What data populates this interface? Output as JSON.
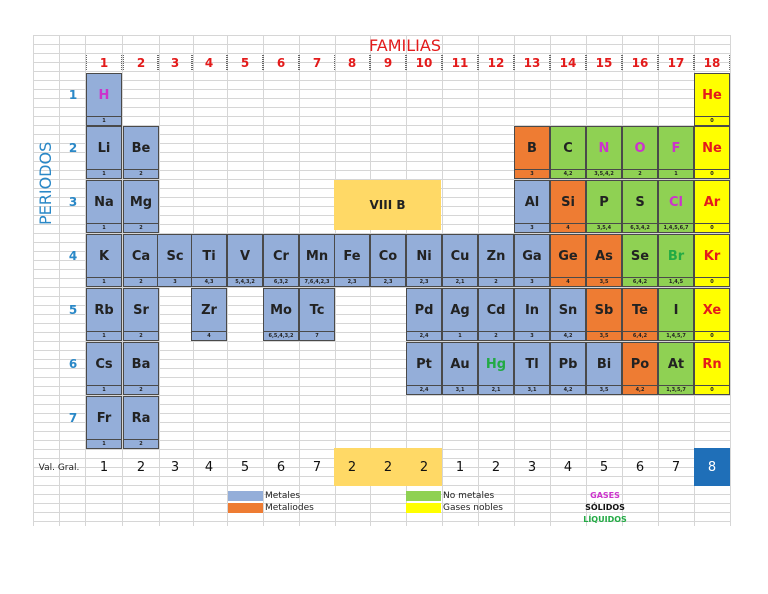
{
  "title": "FAMILIAS",
  "periods_label": "PERIODOS",
  "val_gral_label": "Val. Gral.",
  "block_label": "VIII  B",
  "families": [
    "1",
    "2",
    "3",
    "4",
    "5",
    "6",
    "7",
    "8",
    "9",
    "10",
    "11",
    "12",
    "13",
    "14",
    "15",
    "16",
    "17",
    "18"
  ],
  "periods": [
    "1",
    "2",
    "3",
    "4",
    "5",
    "6",
    "7"
  ],
  "val_gral": [
    "1",
    "2",
    "3",
    "4",
    "5",
    "6",
    "7",
    "2",
    "2",
    "2",
    "1",
    "2",
    "3",
    "4",
    "5",
    "6",
    "7",
    "8"
  ],
  "colors": {
    "metal": "#94aed9",
    "metalloid": "#ee7c33",
    "nonmetal": "#8fd153",
    "noble": "#ffff00",
    "block": "#ffd966",
    "title": "#e31b1b",
    "period": "#2a88c7",
    "gas": "#cc33cc",
    "liquid": "#22aa44",
    "group18_val": "#1f6fb8"
  },
  "elements": [
    {
      "sym": "H",
      "p": 1,
      "g": 1,
      "cat": "metal",
      "st": "gas",
      "val": "1"
    },
    {
      "sym": "He",
      "p": 1,
      "g": 18,
      "cat": "noble",
      "st": "gas",
      "val": "0"
    },
    {
      "sym": "Li",
      "p": 2,
      "g": 1,
      "cat": "metal",
      "st": "solid",
      "val": "1"
    },
    {
      "sym": "Be",
      "p": 2,
      "g": 2,
      "cat": "metal",
      "st": "solid",
      "val": "2"
    },
    {
      "sym": "B",
      "p": 2,
      "g": 13,
      "cat": "metalloid",
      "st": "solid",
      "val": "3"
    },
    {
      "sym": "C",
      "p": 2,
      "g": 14,
      "cat": "nonmetal",
      "st": "solid",
      "val": "4,2"
    },
    {
      "sym": "N",
      "p": 2,
      "g": 15,
      "cat": "nonmetal",
      "st": "gas",
      "val": "3,5,4,2"
    },
    {
      "sym": "O",
      "p": 2,
      "g": 16,
      "cat": "nonmetal",
      "st": "gas",
      "val": "2"
    },
    {
      "sym": "F",
      "p": 2,
      "g": 17,
      "cat": "nonmetal",
      "st": "gas",
      "val": "1"
    },
    {
      "sym": "Ne",
      "p": 2,
      "g": 18,
      "cat": "noble",
      "st": "gas",
      "val": "0"
    },
    {
      "sym": "Na",
      "p": 3,
      "g": 1,
      "cat": "metal",
      "st": "solid",
      "val": "1"
    },
    {
      "sym": "Mg",
      "p": 3,
      "g": 2,
      "cat": "metal",
      "st": "solid",
      "val": "2"
    },
    {
      "sym": "Al",
      "p": 3,
      "g": 13,
      "cat": "metal",
      "st": "solid",
      "val": "3"
    },
    {
      "sym": "Si",
      "p": 3,
      "g": 14,
      "cat": "metalloid",
      "st": "solid",
      "val": "4"
    },
    {
      "sym": "P",
      "p": 3,
      "g": 15,
      "cat": "nonmetal",
      "st": "solid",
      "val": "3,5,4"
    },
    {
      "sym": "S",
      "p": 3,
      "g": 16,
      "cat": "nonmetal",
      "st": "solid",
      "val": "6,3,4,2"
    },
    {
      "sym": "Cl",
      "p": 3,
      "g": 17,
      "cat": "nonmetal",
      "st": "gas",
      "val": "1,4,5,6,7"
    },
    {
      "sym": "Ar",
      "p": 3,
      "g": 18,
      "cat": "noble",
      "st": "gas",
      "val": "0"
    },
    {
      "sym": "K",
      "p": 4,
      "g": 1,
      "cat": "metal",
      "st": "solid",
      "val": "1"
    },
    {
      "sym": "Ca",
      "p": 4,
      "g": 2,
      "cat": "metal",
      "st": "solid",
      "val": "2"
    },
    {
      "sym": "Sc",
      "p": 4,
      "g": 3,
      "cat": "metal",
      "st": "solid",
      "val": "3"
    },
    {
      "sym": "Ti",
      "p": 4,
      "g": 4,
      "cat": "metal",
      "st": "solid",
      "val": "4,3"
    },
    {
      "sym": "V",
      "p": 4,
      "g": 5,
      "cat": "metal",
      "st": "solid",
      "val": "5,4,3,2"
    },
    {
      "sym": "Cr",
      "p": 4,
      "g": 6,
      "cat": "metal",
      "st": "solid",
      "val": "6,3,2"
    },
    {
      "sym": "Mn",
      "p": 4,
      "g": 7,
      "cat": "metal",
      "st": "solid",
      "val": "7,6,4,2,3"
    },
    {
      "sym": "Fe",
      "p": 4,
      "g": 8,
      "cat": "metal",
      "st": "solid",
      "val": "2,3"
    },
    {
      "sym": "Co",
      "p": 4,
      "g": 9,
      "cat": "metal",
      "st": "solid",
      "val": "2,3"
    },
    {
      "sym": "Ni",
      "p": 4,
      "g": 10,
      "cat": "metal",
      "st": "solid",
      "val": "2,3"
    },
    {
      "sym": "Cu",
      "p": 4,
      "g": 11,
      "cat": "metal",
      "st": "solid",
      "val": "2,1"
    },
    {
      "sym": "Zn",
      "p": 4,
      "g": 12,
      "cat": "metal",
      "st": "solid",
      "val": "2"
    },
    {
      "sym": "Ga",
      "p": 4,
      "g": 13,
      "cat": "metal",
      "st": "solid",
      "val": "3"
    },
    {
      "sym": "Ge",
      "p": 4,
      "g": 14,
      "cat": "metalloid",
      "st": "solid",
      "val": "4"
    },
    {
      "sym": "As",
      "p": 4,
      "g": 15,
      "cat": "metalloid",
      "st": "solid",
      "val": "3,5"
    },
    {
      "sym": "Se",
      "p": 4,
      "g": 16,
      "cat": "nonmetal",
      "st": "solid",
      "val": "6,4,2"
    },
    {
      "sym": "Br",
      "p": 4,
      "g": 17,
      "cat": "nonmetal",
      "st": "liquid",
      "val": "1,4,5"
    },
    {
      "sym": "Kr",
      "p": 4,
      "g": 18,
      "cat": "noble",
      "st": "gas",
      "val": "0"
    },
    {
      "sym": "Rb",
      "p": 5,
      "g": 1,
      "cat": "metal",
      "st": "solid",
      "val": "1"
    },
    {
      "sym": "Sr",
      "p": 5,
      "g": 2,
      "cat": "metal",
      "st": "solid",
      "val": "2"
    },
    {
      "sym": "Zr",
      "p": 5,
      "g": 4,
      "cat": "metal",
      "st": "solid",
      "val": "4"
    },
    {
      "sym": "Mo",
      "p": 5,
      "g": 6,
      "cat": "metal",
      "st": "solid",
      "val": "6,5,4,3,2"
    },
    {
      "sym": "Tc",
      "p": 5,
      "g": 7,
      "cat": "metal",
      "st": "solid",
      "val": "7"
    },
    {
      "sym": "Pd",
      "p": 5,
      "g": 10,
      "cat": "metal",
      "st": "solid",
      "val": "2,4"
    },
    {
      "sym": "Ag",
      "p": 5,
      "g": 11,
      "cat": "metal",
      "st": "solid",
      "val": "1"
    },
    {
      "sym": "Cd",
      "p": 5,
      "g": 12,
      "cat": "metal",
      "st": "solid",
      "val": "2"
    },
    {
      "sym": "In",
      "p": 5,
      "g": 13,
      "cat": "metal",
      "st": "solid",
      "val": "3"
    },
    {
      "sym": "Sn",
      "p": 5,
      "g": 14,
      "cat": "metal",
      "st": "solid",
      "val": "4,2"
    },
    {
      "sym": "Sb",
      "p": 5,
      "g": 15,
      "cat": "metalloid",
      "st": "solid",
      "val": "3,5"
    },
    {
      "sym": "Te",
      "p": 5,
      "g": 16,
      "cat": "metalloid",
      "st": "solid",
      "val": "6,4,2"
    },
    {
      "sym": "I",
      "p": 5,
      "g": 17,
      "cat": "nonmetal",
      "st": "solid",
      "val": "1,4,5,7"
    },
    {
      "sym": "Xe",
      "p": 5,
      "g": 18,
      "cat": "noble",
      "st": "gas",
      "val": "0"
    },
    {
      "sym": "Cs",
      "p": 6,
      "g": 1,
      "cat": "metal",
      "st": "solid",
      "val": "1"
    },
    {
      "sym": "Ba",
      "p": 6,
      "g": 2,
      "cat": "metal",
      "st": "solid",
      "val": "2"
    },
    {
      "sym": "Pt",
      "p": 6,
      "g": 10,
      "cat": "metal",
      "st": "solid",
      "val": "2,4"
    },
    {
      "sym": "Au",
      "p": 6,
      "g": 11,
      "cat": "metal",
      "st": "solid",
      "val": "3,1"
    },
    {
      "sym": "Hg",
      "p": 6,
      "g": 12,
      "cat": "metal",
      "st": "liquid",
      "val": "2,1"
    },
    {
      "sym": "Tl",
      "p": 6,
      "g": 13,
      "cat": "metal",
      "st": "solid",
      "val": "3,1"
    },
    {
      "sym": "Pb",
      "p": 6,
      "g": 14,
      "cat": "metal",
      "st": "solid",
      "val": "4,2"
    },
    {
      "sym": "Bi",
      "p": 6,
      "g": 15,
      "cat": "metal",
      "st": "solid",
      "val": "3,5"
    },
    {
      "sym": "Po",
      "p": 6,
      "g": 16,
      "cat": "metalloid",
      "st": "solid",
      "val": "4,2"
    },
    {
      "sym": "At",
      "p": 6,
      "g": 17,
      "cat": "nonmetal",
      "st": "solid",
      "val": "1,3,5,7"
    },
    {
      "sym": "Rn",
      "p": 6,
      "g": 18,
      "cat": "noble",
      "st": "gas",
      "val": "0"
    },
    {
      "sym": "Fr",
      "p": 7,
      "g": 1,
      "cat": "metal",
      "st": "solid",
      "val": "1"
    },
    {
      "sym": "Ra",
      "p": 7,
      "g": 2,
      "cat": "metal",
      "st": "solid",
      "val": "2"
    }
  ],
  "legend": {
    "metales": "Metales",
    "metaloides": "Metaliodes",
    "no_metales": "No metales",
    "gases_nobles": "Gases nobles",
    "gases": "GASES",
    "solidos": "SÓLIDOS",
    "liquidos": "LÍQUIDOS"
  }
}
